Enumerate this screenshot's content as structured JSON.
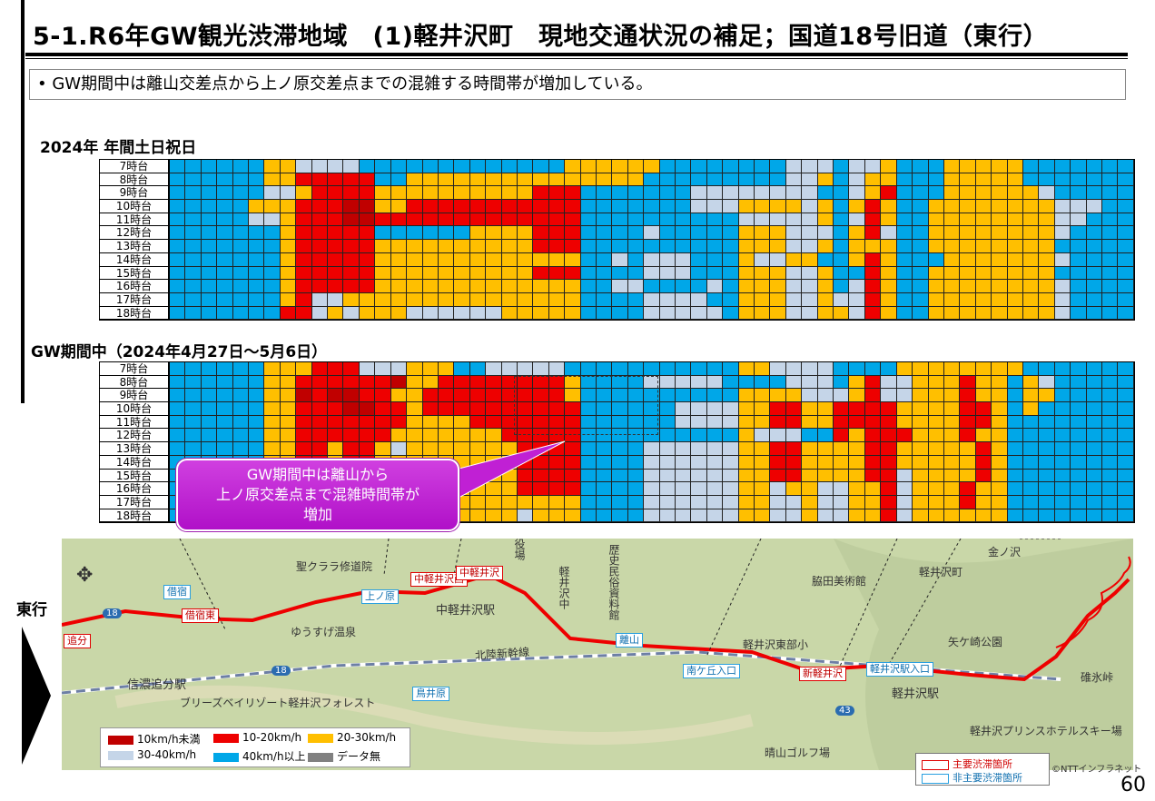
{
  "title": "5-1.R6年GW観光渋滞地域　(1)軽井沢町　現地交通状況の補足；国道18号旧道（東行）",
  "summary": "•  GW期間中は離山交差点から上ノ原交差点までの混雑する時間帯が増加している。",
  "colors": {
    "c1": "#c00000",
    "c2": "#ee0000",
    "c3": "#ffbf00",
    "c4": "#c5d5e8",
    "c5": "#00a7e8",
    "c6": "#808080"
  },
  "hours": [
    "7時台",
    "8時台",
    "9時台",
    "10時台",
    "11時台",
    "12時台",
    "13時台",
    "14時台",
    "15時台",
    "16時台",
    "17時台",
    "18時台"
  ],
  "grids": [
    {
      "name": "2024年 年間土日祝日",
      "rows": [
        "5555553344445555555555555333333555555554445443555333335555555",
        "5555553322222553333333333333335555555554435433555333335555555",
        "5555554432222333333333322255555554444444455432555333333455555",
        "5555533322211332222222222255555554443333435323553333333344455",
        "5555544322211222222222222255555555554444435423553333333344555",
        "5555555322222555555333322255554555553334445324553333333345555",
        "5555555322222333333333322255555555553334435333553333333355555",
        "5555555322222333333333333355454445553443355323555333333345555",
        "5555555322222333333333322255554445553334435523553333333355555",
        "5555555322222333333333333355445555453334435423553333333345555",
        "5555555324433333333333333355554444553334434423553333333345555",
        "5555555224343334444443333355554444453334433423553333333345555"
      ]
    },
    {
      "name": "GW期間中（2024年4月27日～5月6日）",
      "rows": [
        "5555553332224443335544444555555555553344445555333333335555555",
        "5555553322222213322222222355554444455554445324433323353455555",
        "5555553312112233222222222355555555553333444324433323353355555",
        "5555553322211223222222222255555544443322332222333322353555555",
        "5555553322222223333222222255555544443322332222333322355555555",
        "5555553322222233333332222255555555553444552322233323355555555",
        "5555553322322343333333222255554444443322333322333332355555555",
        "5555553322322333333333222255554444443322333322333332355555555",
        "5555553322322333333333222255554444443322333322433332355555555",
        "5555553322322344343333222255554444443343344332433323355555555",
        "5555553322322244443333333355554444443344344332433323355555555",
        "5555553322322344443333433355554444443344344332433333355555555"
      ]
    }
  ],
  "callout": "GW期間中は離山から\n上ノ原交差点まで混雑時間帯が\n増加",
  "direction": "東行",
  "map": {
    "places": [
      "聖クララ修道院",
      "信濃追分駅",
      "ゆうすげ温泉",
      "中軽井沢駅",
      "北陸新幹線",
      "歴史民俗資料館",
      "役場",
      "脇田美術館",
      "軽井沢町",
      "軽井沢東部小",
      "矢ケ崎公園",
      "軽井沢駅",
      "碓氷峠",
      "軽井沢プリンスホテルスキー場",
      "晴山ゴルフ場",
      "ブリーズベイリゾート軽井沢フォレスト",
      "金ノ沢",
      "軽井沢中"
    ],
    "red_boxes": [
      "追分",
      "借宿東",
      "中軽井沢西",
      "中軽井沢",
      "新軽井沢"
    ],
    "blue_boxes": [
      "借宿",
      "上ノ原",
      "離山",
      "南ケ丘入口",
      "軽井沢駅入口",
      "鳥井原"
    ],
    "routes": [
      "18",
      "18",
      "43"
    ]
  },
  "legend": [
    {
      "label": "10km/h未満",
      "color": "#c00000"
    },
    {
      "label": "10-20km/h",
      "color": "#ee0000"
    },
    {
      "label": "20-30km/h",
      "color": "#ffbf00"
    },
    {
      "label": "30-40km/h",
      "color": "#c5d5e8"
    },
    {
      "label": "40km/h以上",
      "color": "#00a7e8"
    },
    {
      "label": "データ無",
      "color": "#808080"
    }
  ],
  "legend2": [
    {
      "label": "主要渋滞箇所"
    },
    {
      "label": "非主要渋滞箇所"
    }
  ],
  "copyright": "©NTTインフラネット",
  "page": "60"
}
